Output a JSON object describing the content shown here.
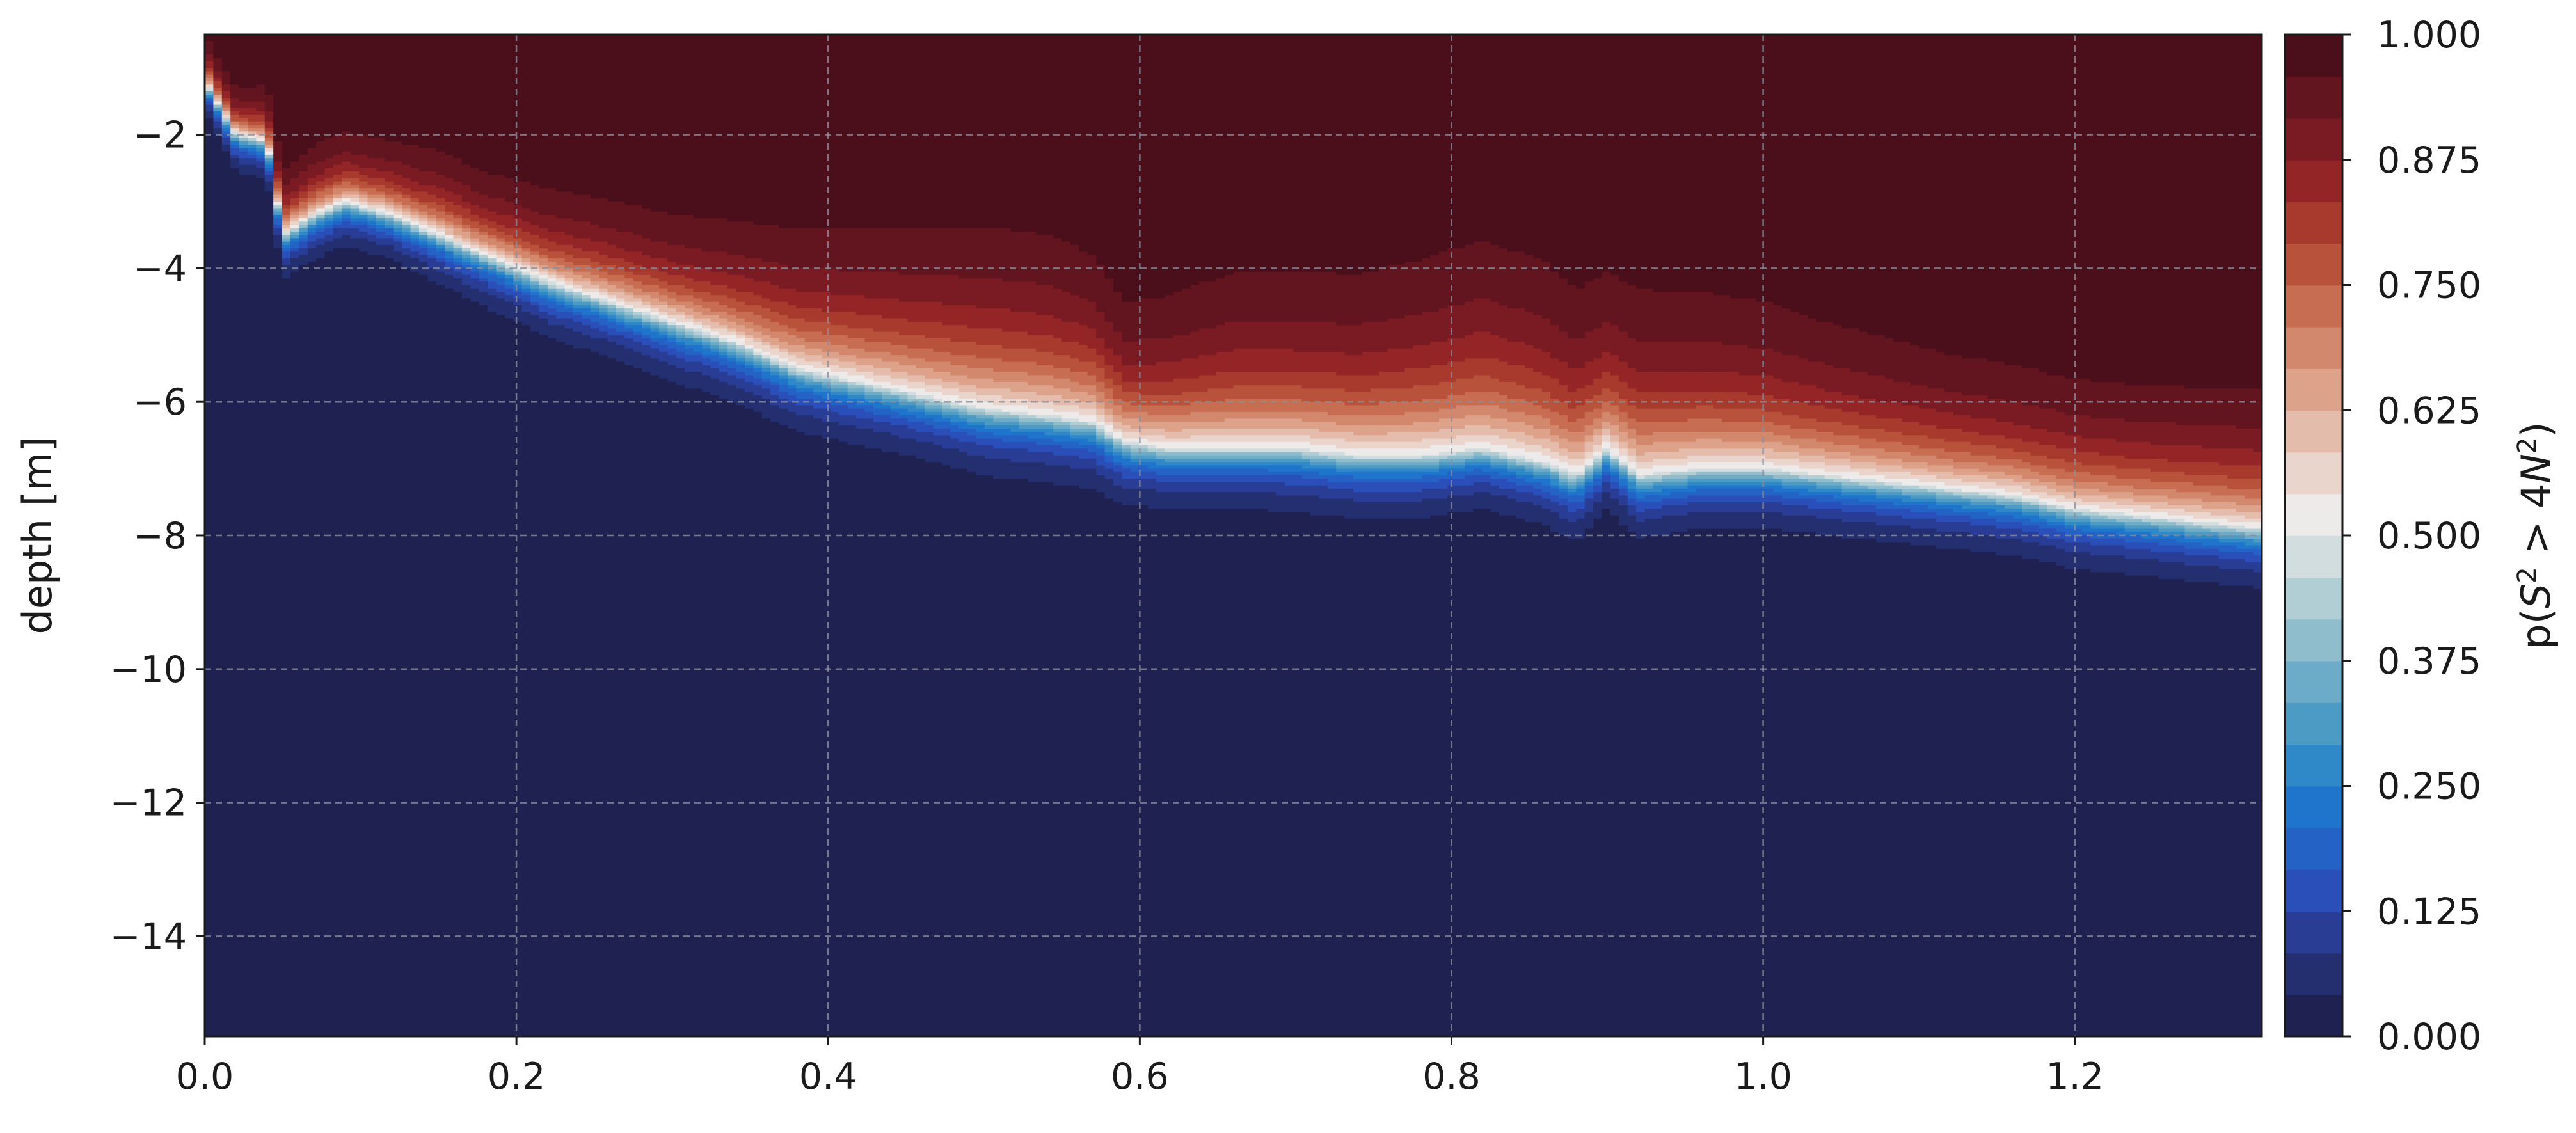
{
  "chart_data": {
    "type": "heatmap",
    "title": "",
    "xlabel": "",
    "ylabel": "depth [m]",
    "xlim": [
      0.0,
      1.32
    ],
    "ylim": [
      -15.5,
      -0.5
    ],
    "x_ticks": [
      0.0,
      0.2,
      0.4,
      0.6,
      0.8,
      1.0,
      1.2
    ],
    "x_tick_labels": [
      "0.0",
      "0.2",
      "0.4",
      "0.6",
      "0.8",
      "1.0",
      "1.2"
    ],
    "y_ticks": [
      -2,
      -4,
      -6,
      -8,
      -10,
      -12,
      -14
    ],
    "y_tick_labels": [
      "−2",
      "−4",
      "−6",
      "−8",
      "−10",
      "−12",
      "−14"
    ],
    "grid": true,
    "colorbar": {
      "label_prefix": "p(",
      "label_var1": "S",
      "label_exp1": "2",
      "label_mid": " > 4",
      "label_var2": "N",
      "label_exp2": "2",
      "label_suffix": ")",
      "range": [
        0.0,
        1.0
      ],
      "levels": 24,
      "tick_values": [
        0.0,
        0.125,
        0.25,
        0.375,
        0.5,
        0.625,
        0.75,
        0.875,
        1.0
      ],
      "tick_labels": [
        "0.000",
        "0.125",
        "0.250",
        "0.375",
        "0.500",
        "0.625",
        "0.750",
        "0.875",
        "1.000"
      ],
      "colors": [
        "#1f2250",
        "#242f70",
        "#2a3d95",
        "#2a4fb8",
        "#2462c6",
        "#1f74cb",
        "#2f88c7",
        "#4c9bc4",
        "#6cacc8",
        "#8fbdcc",
        "#b1ced5",
        "#d2dde0",
        "#ecebea",
        "#ead5cd",
        "#e4bcab",
        "#dca28a",
        "#d2886c",
        "#c76d51",
        "#b8523b",
        "#a73a2d",
        "#942526",
        "#7a1a22",
        "#62141f",
        "#4b0e1b"
      ]
    },
    "x": [
      0.0,
      0.02,
      0.04,
      0.05,
      0.07,
      0.09,
      0.12,
      0.15,
      0.18,
      0.2,
      0.22,
      0.26,
      0.3,
      0.34,
      0.38,
      0.42,
      0.46,
      0.5,
      0.54,
      0.57,
      0.59,
      0.62,
      0.66,
      0.7,
      0.74,
      0.78,
      0.82,
      0.86,
      0.88,
      0.9,
      0.92,
      0.96,
      1.0,
      1.04,
      1.08,
      1.12,
      1.16,
      1.2,
      1.24,
      1.28,
      1.32
    ],
    "transition_depth_m": [
      -1.2,
      -2.0,
      -2.1,
      -3.5,
      -3.2,
      -3.0,
      -3.2,
      -3.5,
      -3.8,
      -4.0,
      -4.2,
      -4.5,
      -4.8,
      -5.1,
      -5.5,
      -5.7,
      -5.9,
      -6.1,
      -6.2,
      -6.3,
      -6.6,
      -6.7,
      -6.7,
      -6.7,
      -6.8,
      -6.8,
      -6.7,
      -6.9,
      -7.1,
      -6.7,
      -7.1,
      -7.0,
      -7.0,
      -7.1,
      -7.2,
      -7.3,
      -7.4,
      -7.6,
      -7.7,
      -7.8,
      -7.9
    ],
    "transition_width_m": [
      0.4,
      0.5,
      0.5,
      0.6,
      0.6,
      0.6,
      0.6,
      0.65,
      0.7,
      0.7,
      0.75,
      0.75,
      0.8,
      0.8,
      0.85,
      0.85,
      0.85,
      0.9,
      0.9,
      0.9,
      0.85,
      0.8,
      0.8,
      0.85,
      0.85,
      0.85,
      0.8,
      0.85,
      0.9,
      0.8,
      0.85,
      0.8,
      0.8,
      0.8,
      0.8,
      0.8,
      0.8,
      0.8,
      0.8,
      0.8,
      0.8
    ],
    "surface_decay_m": [
      1.0,
      1.0,
      1.2,
      1.4,
      1.5,
      1.5,
      1.6,
      1.8,
      1.8,
      1.9,
      2.0,
      2.2,
      2.3,
      2.6,
      3.0,
      3.3,
      3.6,
      3.9,
      3.9,
      3.6,
      3.0,
      3.3,
      3.8,
      3.8,
      3.9,
      4.2,
      4.5,
      4.3,
      4.0,
      3.8,
      4.0,
      3.8,
      3.6,
      3.3,
      3.1,
      2.9,
      2.8,
      2.8,
      2.8,
      2.9,
      3.0
    ]
  }
}
